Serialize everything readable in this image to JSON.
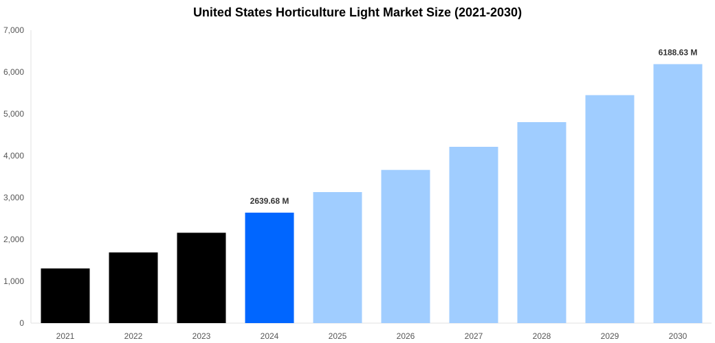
{
  "chart_data": {
    "type": "bar",
    "title": "United States Horticulture Light Market Size (2021-2030)",
    "xlabel": "",
    "ylabel": "",
    "categories": [
      "2021",
      "2022",
      "2023",
      "2024",
      "2025",
      "2026",
      "2027",
      "2028",
      "2029",
      "2030"
    ],
    "values": [
      1306,
      1689,
      2159,
      2639.68,
      3131,
      3661,
      4213,
      4803,
      5448,
      6188.63
    ],
    "ylim": [
      0,
      7000
    ],
    "yticks": [
      0,
      1000,
      2000,
      3000,
      4000,
      5000,
      6000,
      7000
    ],
    "ytick_labels": [
      "0",
      "1,000",
      "2,000",
      "3,000",
      "4,000",
      "5,000",
      "6,000",
      "7,000"
    ],
    "data_labels": {
      "3": "2639.68 M",
      "9": "6188.63 M"
    },
    "bar_colors": [
      "#000000",
      "#000000",
      "#000000",
      "#0066ff",
      "#a0cdff",
      "#a0cdff",
      "#a0cdff",
      "#a0cdff",
      "#a0cdff",
      "#a0cdff"
    ],
    "grid": false,
    "legend": "none"
  }
}
